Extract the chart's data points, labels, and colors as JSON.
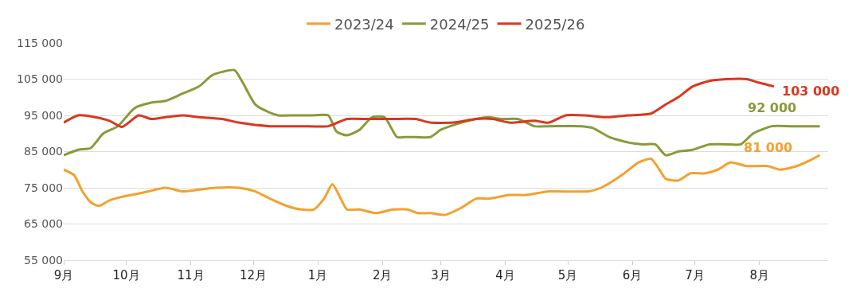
{
  "chart_data": {
    "type": "line",
    "xlim": [
      "2024-09-01",
      "2025-09-03"
    ],
    "xticks": [
      {
        "value": "2024-09-01",
        "label": "9月"
      },
      {
        "value": "2024-10-01",
        "label": "10月"
      },
      {
        "value": "2024-11-01",
        "label": "11月"
      },
      {
        "value": "2024-12-01",
        "label": "12月"
      },
      {
        "value": "2025-01-01",
        "label": "1月"
      },
      {
        "value": "2025-02-01",
        "label": "2月"
      },
      {
        "value": "2025-03-01",
        "label": "3月"
      },
      {
        "value": "2025-04-01",
        "label": "4月"
      },
      {
        "value": "2025-05-01",
        "label": "5月"
      },
      {
        "value": "2025-06-01",
        "label": "6月"
      },
      {
        "value": "2025-07-01",
        "label": "7月"
      },
      {
        "value": "2025-08-01",
        "label": "8月"
      }
    ],
    "ylim": [
      55000,
      115000
    ],
    "yticks": [
      {
        "value": 55000,
        "label": "55 000"
      },
      {
        "value": 65000,
        "label": "65 000"
      },
      {
        "value": 75000,
        "label": "75 000"
      },
      {
        "value": 85000,
        "label": "85 000"
      },
      {
        "value": 95000,
        "label": "95 000"
      },
      {
        "value": 105000,
        "label": "105 000"
      },
      {
        "value": 115000,
        "label": "115 000"
      }
    ],
    "grid": "y",
    "legend": "top",
    "marker": "none",
    "line_style": "solid",
    "series": [
      {
        "name": "2023/24",
        "color": "#f2a12e",
        "x": [
          "2024-09-01",
          "2024-09-06",
          "2024-09-10",
          "2024-09-14",
          "2024-09-18",
          "2024-09-23",
          "2024-09-29",
          "2024-10-08",
          "2024-10-20",
          "2024-10-28",
          "2024-11-05",
          "2024-11-13",
          "2024-11-24",
          "2024-12-02",
          "2024-12-09",
          "2024-12-17",
          "2024-12-24",
          "2024-12-30",
          "2025-01-04",
          "2025-01-08",
          "2025-01-12",
          "2025-01-15",
          "2025-01-21",
          "2025-01-29",
          "2025-02-06",
          "2025-02-13",
          "2025-02-18",
          "2025-02-24",
          "2025-03-03",
          "2025-03-11",
          "2025-03-18",
          "2025-03-24",
          "2025-04-03",
          "2025-04-11",
          "2025-04-22",
          "2025-05-11",
          "2025-05-17",
          "2025-05-27",
          "2025-06-04",
          "2025-06-10",
          "2025-06-14",
          "2025-06-17",
          "2025-06-23",
          "2025-06-29",
          "2025-07-06",
          "2025-07-12",
          "2025-07-18",
          "2025-07-26",
          "2025-08-05",
          "2025-08-11",
          "2025-08-19",
          "2025-08-25",
          "2025-08-30"
        ],
        "values": [
          80000,
          78500,
          74000,
          71000,
          70000,
          71500,
          72500,
          73500,
          75000,
          74000,
          74500,
          75000,
          75000,
          74000,
          72000,
          70000,
          69000,
          69000,
          72000,
          76000,
          72000,
          69000,
          69000,
          68000,
          69000,
          69000,
          68000,
          68000,
          67500,
          69500,
          72000,
          72000,
          73000,
          73000,
          74000,
          74000,
          75000,
          78500,
          82000,
          83000,
          80000,
          77500,
          77000,
          79000,
          79000,
          80000,
          82000,
          81000,
          81000,
          80000,
          81000,
          82500,
          84000
        ]
      },
      {
        "name": "2024/25",
        "color": "#8a9a3a",
        "x": [
          "2024-09-01",
          "2024-09-08",
          "2024-09-14",
          "2024-09-20",
          "2024-09-27",
          "2024-10-05",
          "2024-10-13",
          "2024-10-20",
          "2024-10-28",
          "2024-11-05",
          "2024-11-11",
          "2024-11-16",
          "2024-11-22",
          "2024-11-26",
          "2024-12-02",
          "2024-12-08",
          "2024-12-13",
          "2024-12-21",
          "2024-12-29",
          "2025-01-06",
          "2025-01-10",
          "2025-01-15",
          "2025-01-21",
          "2025-01-27",
          "2025-02-02",
          "2025-02-08",
          "2025-02-12",
          "2025-02-17",
          "2025-02-24",
          "2025-03-01",
          "2025-03-11",
          "2025-03-18",
          "2025-03-24",
          "2025-03-30",
          "2025-04-07",
          "2025-04-15",
          "2025-04-22",
          "2025-05-08",
          "2025-05-13",
          "2025-05-21",
          "2025-05-30",
          "2025-06-06",
          "2025-06-12",
          "2025-06-17",
          "2025-06-23",
          "2025-06-30",
          "2025-07-08",
          "2025-07-16",
          "2025-07-23",
          "2025-07-29",
          "2025-08-07",
          "2025-08-16",
          "2025-08-30"
        ],
        "values": [
          84000,
          85500,
          86000,
          90000,
          92000,
          97000,
          98500,
          99000,
          101000,
          103000,
          106000,
          107000,
          107500,
          104000,
          98000,
          96000,
          95000,
          95000,
          95000,
          95000,
          90500,
          89500,
          91000,
          94500,
          94500,
          89000,
          89000,
          89000,
          89000,
          91000,
          93000,
          94000,
          94500,
          94000,
          94000,
          92000,
          92000,
          92000,
          91500,
          89000,
          87500,
          87000,
          87000,
          84000,
          85000,
          85500,
          87000,
          87000,
          87000,
          90000,
          92000,
          92000,
          92000
        ]
      },
      {
        "name": "2025/26",
        "color": "#d9381e",
        "x": [
          "2024-09-01",
          "2024-09-08",
          "2024-09-16",
          "2024-09-23",
          "2024-09-29",
          "2024-10-07",
          "2024-10-13",
          "2024-10-20",
          "2024-10-28",
          "2024-11-05",
          "2024-11-16",
          "2024-11-24",
          "2024-12-09",
          "2024-12-24",
          "2025-01-06",
          "2025-01-15",
          "2025-01-25",
          "2025-02-06",
          "2025-02-17",
          "2025-02-24",
          "2025-03-07",
          "2025-03-18",
          "2025-03-26",
          "2025-04-03",
          "2025-04-15",
          "2025-04-22",
          "2025-04-30",
          "2025-05-09",
          "2025-05-19",
          "2025-05-30",
          "2025-06-10",
          "2025-06-17",
          "2025-06-23",
          "2025-06-30",
          "2025-07-08",
          "2025-07-16",
          "2025-07-26",
          "2025-08-01",
          "2025-08-08"
        ],
        "values": [
          93000,
          95000,
          94500,
          93500,
          91800,
          95000,
          94000,
          94500,
          95000,
          94500,
          94000,
          93000,
          92000,
          92000,
          92000,
          94000,
          94000,
          94000,
          94000,
          93000,
          93000,
          94000,
          94000,
          93000,
          93500,
          93000,
          95000,
          95000,
          94500,
          95000,
          95500,
          98000,
          100000,
          103000,
          104500,
          105000,
          105000,
          104000,
          103000
        ]
      }
    ],
    "annotations": [
      {
        "text": "103 000",
        "x": "2025-08-08",
        "y": 103000
      },
      {
        "text": "92 000",
        "x": "2025-08-07",
        "y": 92000
      },
      {
        "text": "81 000",
        "x": "2025-08-05",
        "y": 81000
      }
    ]
  }
}
